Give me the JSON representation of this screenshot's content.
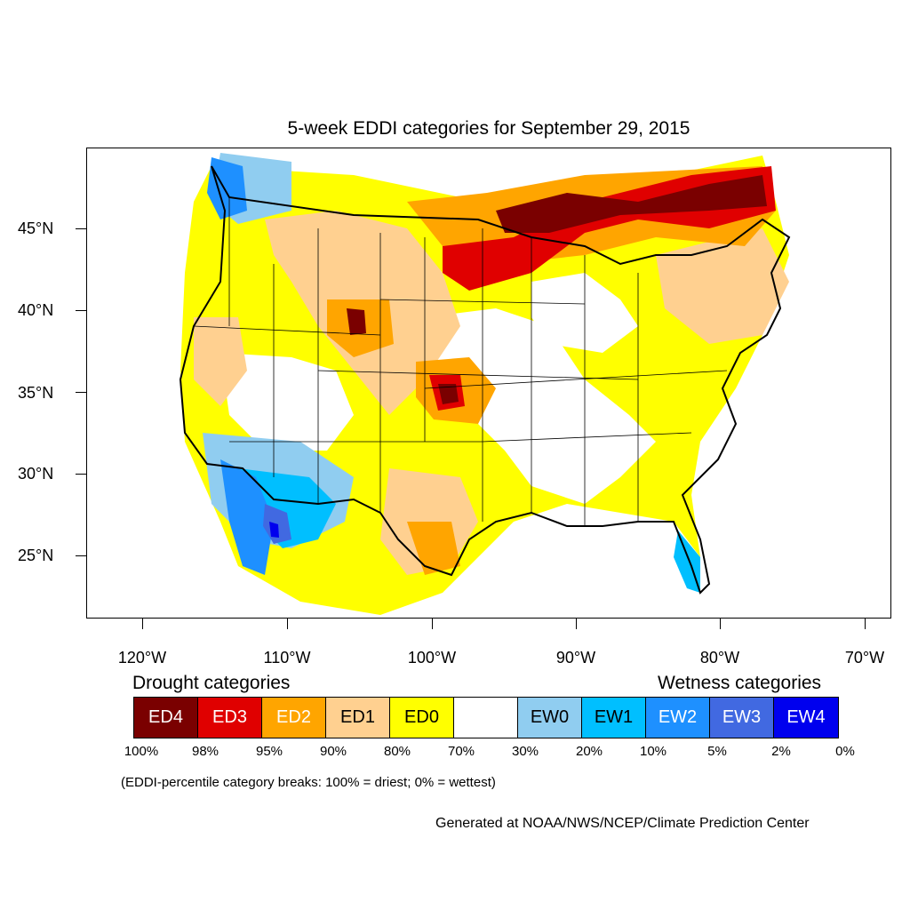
{
  "title": "5-week EDDI categories for September 29, 2015",
  "axes": {
    "lat_labels": [
      "45°N",
      "40°N",
      "35°N",
      "30°N",
      "25°N"
    ],
    "lon_labels": [
      "120°W",
      "110°W",
      "100°W",
      "90°W",
      "80°W",
      "70°W"
    ]
  },
  "legend": {
    "drought_heading": "Drought categories",
    "wetness_heading": "Wetness categories",
    "categories": [
      {
        "label": "ED4",
        "color": "#7a0000",
        "text_color": "#ffffff"
      },
      {
        "label": "ED3",
        "color": "#e00000",
        "text_color": "#ffffff"
      },
      {
        "label": "ED2",
        "color": "#ffa500",
        "text_color": "#ffffff"
      },
      {
        "label": "ED1",
        "color": "#ffd090",
        "text_color": "#000000"
      },
      {
        "label": "ED0",
        "color": "#ffff00",
        "text_color": "#000000"
      },
      {
        "label": "",
        "color": "#ffffff",
        "text_color": "#000000"
      },
      {
        "label": "EW0",
        "color": "#90cdf0",
        "text_color": "#000000"
      },
      {
        "label": "EW1",
        "color": "#00bfff",
        "text_color": "#000000"
      },
      {
        "label": "EW2",
        "color": "#1e90ff",
        "text_color": "#ffffff"
      },
      {
        "label": "EW3",
        "color": "#4169e1",
        "text_color": "#ffffff"
      },
      {
        "label": "EW4",
        "color": "#0000ee",
        "text_color": "#ffffff"
      }
    ],
    "breaks": [
      "100%",
      "98%",
      "95%",
      "90%",
      "80%",
      "70%",
      "30%",
      "20%",
      "10%",
      "5%",
      "2%",
      "0%"
    ],
    "note": "(EDDI-percentile category breaks: 100% = driest; 0% = wettest)"
  },
  "credit": "Generated at NOAA/NWS/NCEP/Climate Prediction Center"
}
